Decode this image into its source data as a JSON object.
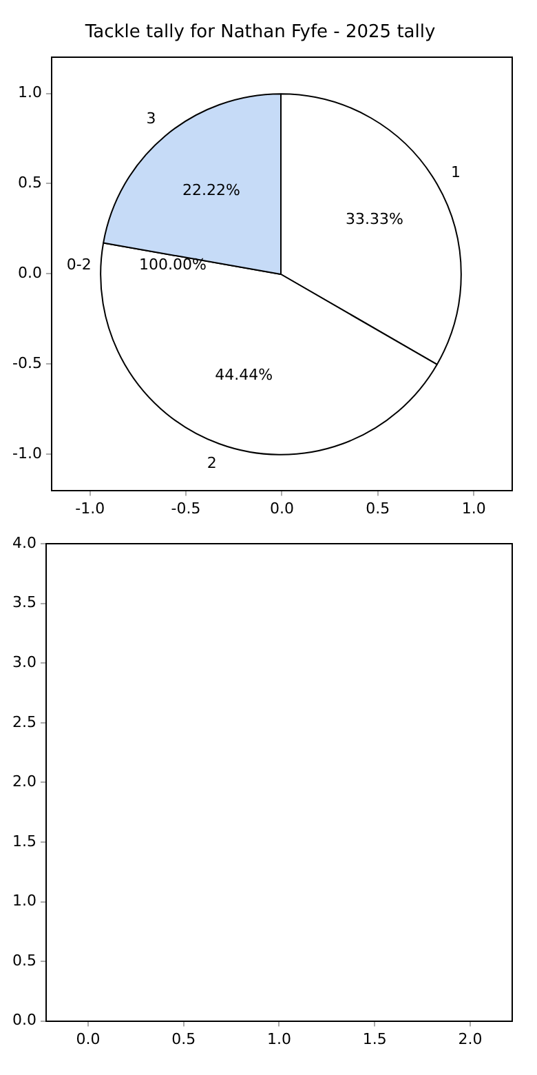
{
  "chart_data": [
    {
      "type": "scatter",
      "title": "Tackle tally for Nathan Fyfe - 2025 tally",
      "xlim": [
        -1.2,
        1.2
      ],
      "ylim": [
        -1.2,
        1.2
      ],
      "xticks": [
        {
          "value": -1,
          "label": "-1.0"
        },
        {
          "value": -0.5,
          "label": "-0.5"
        },
        {
          "value": 0,
          "label": "0.0"
        },
        {
          "value": 0.5,
          "label": "0.5"
        },
        {
          "value": 1,
          "label": "1.0"
        }
      ],
      "yticks": [
        {
          "value": -1,
          "label": "-1.0"
        },
        {
          "value": -0.5,
          "label": "-0.5"
        },
        {
          "value": 0,
          "label": "0.0"
        },
        {
          "value": 0.5,
          "label": "0.5"
        },
        {
          "value": 1,
          "label": "1.0"
        }
      ]
    },
    {
      "type": "pie",
      "categories": [
        "1",
        "2",
        "3"
      ],
      "values": [
        33.33,
        44.44,
        22.22
      ],
      "colors": [
        "#ffffff",
        "#ffffff",
        "#c6dbf7"
      ],
      "value_labels": [
        "33.33%",
        "44.44%",
        "22.22%"
      ],
      "annotations": [
        "0-2",
        "100.00%"
      ]
    },
    {
      "type": "scatter",
      "xlim": [
        -0.22,
        2.22
      ],
      "ylim": [
        0,
        4
      ],
      "xticks": [
        {
          "value": 0,
          "label": "0.0"
        },
        {
          "value": 0.5,
          "label": "0.5"
        },
        {
          "value": 1,
          "label": "1.0"
        },
        {
          "value": 1.5,
          "label": "1.5"
        },
        {
          "value": 2,
          "label": "2.0"
        }
      ],
      "yticks": [
        {
          "value": 0,
          "label": "0.0"
        },
        {
          "value": 0.5,
          "label": "0.5"
        },
        {
          "value": 1,
          "label": "1.0"
        },
        {
          "value": 1.5,
          "label": "1.5"
        },
        {
          "value": 2,
          "label": "2.0"
        },
        {
          "value": 2.5,
          "label": "2.5"
        },
        {
          "value": 3,
          "label": "3.0"
        },
        {
          "value": 3.5,
          "label": "3.5"
        },
        {
          "value": 4,
          "label": "4.0"
        }
      ]
    }
  ]
}
